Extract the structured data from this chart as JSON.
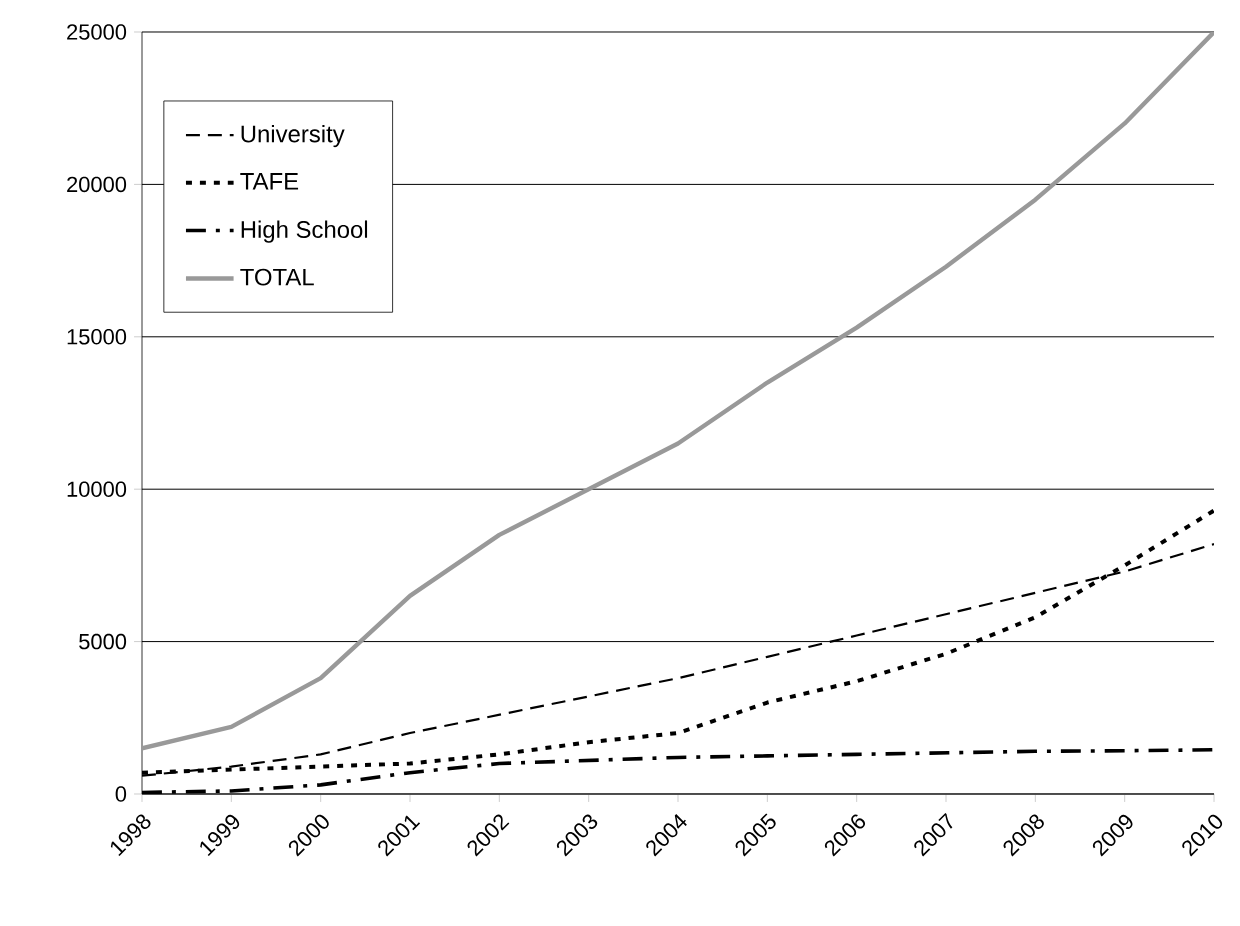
{
  "chart_data": {
    "type": "line",
    "x": [
      1998,
      1999,
      2000,
      2001,
      2002,
      2003,
      2004,
      2005,
      2006,
      2007,
      2008,
      2009,
      2010
    ],
    "series": [
      {
        "name": "University",
        "color": "#000000",
        "line_style": "dashed",
        "values": [
          600,
          900,
          1300,
          2000,
          2600,
          3200,
          3800,
          4500,
          5200,
          5900,
          6600,
          7300,
          8200
        ]
      },
      {
        "name": "TAFE",
        "color": "#000000",
        "line_style": "dotted",
        "values": [
          700,
          800,
          900,
          1000,
          1300,
          1700,
          2000,
          3000,
          3700,
          4600,
          5800,
          7500,
          9300
        ]
      },
      {
        "name": "High School",
        "color": "#000000",
        "line_style": "dashdot",
        "values": [
          50,
          100,
          300,
          700,
          1000,
          1100,
          1200,
          1250,
          1300,
          1350,
          1400,
          1420,
          1450
        ]
      },
      {
        "name": "TOTAL",
        "color": "#999999",
        "line_style": "solid",
        "values": [
          1500,
          2200,
          3800,
          6500,
          8500,
          10000,
          11500,
          13500,
          15300,
          17300,
          19500,
          22000,
          25000
        ]
      }
    ],
    "xlim": [
      1998,
      2010
    ],
    "xticks": [
      1998,
      1999,
      2000,
      2001,
      2002,
      2003,
      2004,
      2005,
      2006,
      2007,
      2008,
      2009,
      2010
    ],
    "ylim": [
      0,
      25000
    ],
    "yticks": [
      0,
      5000,
      10000,
      15000,
      20000,
      25000
    ],
    "grid": "y",
    "legend": "top left",
    "marker": "none"
  }
}
